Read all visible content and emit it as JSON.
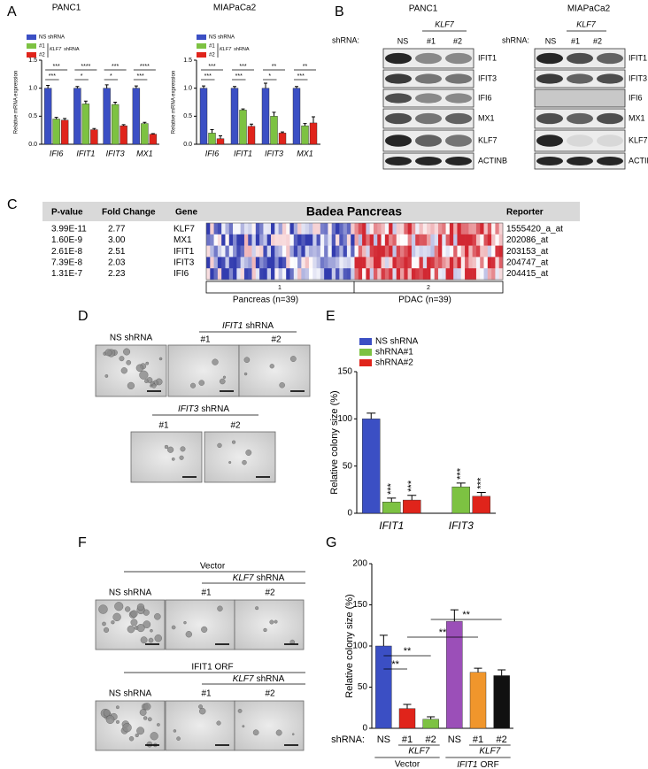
{
  "panel_labels": [
    "A",
    "B",
    "C",
    "D",
    "E",
    "F",
    "G"
  ],
  "chart_data": [
    {
      "type": "bar",
      "title": "PANC1",
      "y_label": "Relative mRNA expression",
      "categories": [
        "IFI6",
        "IFIT1",
        "IFIT3",
        "MX1"
      ],
      "series": [
        {
          "name": "NS shRNA",
          "color": "#3b4fc4",
          "values": [
            1.0,
            1.0,
            1.0,
            1.0
          ],
          "errors": [
            0.05,
            0.03,
            0.06,
            0.04
          ]
        },
        {
          "name": "#1",
          "color": "#7dc242",
          "values": [
            0.45,
            0.72,
            0.71,
            0.37
          ],
          "errors": [
            0.03,
            0.05,
            0.04,
            0.02
          ]
        },
        {
          "name": "#2",
          "color": "#e0241b",
          "values": [
            0.43,
            0.26,
            0.33,
            0.18
          ],
          "errors": [
            0.03,
            0.02,
            0.02,
            0.01
          ]
        }
      ],
      "legend_group_label": {
        "gene": "KLF7",
        "text": "shRNA"
      },
      "significance": [
        [
          "***",
          "***"
        ],
        [
          "****",
          "*"
        ],
        [
          "***",
          "*"
        ],
        [
          "****",
          "***"
        ]
      ],
      "ylim": [
        0,
        1.5
      ],
      "yticks": [
        {
          "value": 0,
          "label": "0.0"
        },
        0.5,
        {
          "value": 1,
          "label": "1.0"
        },
        1.5
      ]
    },
    {
      "type": "bar",
      "title": "MIAPaCa2",
      "y_label": "Relative mRNA expression",
      "categories": [
        "IFI6",
        "IFIT1",
        "IFIT3",
        "MX1"
      ],
      "series": [
        {
          "name": "NS shRNA",
          "color": "#3b4fc4",
          "values": [
            1.0,
            1.0,
            1.0,
            1.0
          ],
          "errors": [
            0.04,
            0.03,
            0.09,
            0.03
          ]
        },
        {
          "name": "#1",
          "color": "#7dc242",
          "values": [
            0.2,
            0.61,
            0.5,
            0.33
          ],
          "errors": [
            0.06,
            0.02,
            0.07,
            0.04
          ]
        },
        {
          "name": "#2",
          "color": "#e0241b",
          "values": [
            0.1,
            0.32,
            0.2,
            0.38
          ],
          "errors": [
            0.05,
            0.04,
            0.02,
            0.11
          ]
        }
      ],
      "legend_group_label": {
        "gene": "KLF7",
        "text": "shRNA"
      },
      "significance": [
        [
          "***",
          "***"
        ],
        [
          "***",
          "***"
        ],
        [
          "**",
          "*"
        ],
        [
          "**",
          "***"
        ]
      ],
      "ylim": [
        0,
        1.5
      ],
      "yticks": [
        {
          "value": 0,
          "label": "0.0"
        },
        0.5,
        {
          "value": 1,
          "label": "1.0"
        },
        1.5
      ]
    },
    {
      "type": "bar",
      "y_label": "Relative colony size (%)",
      "categories": [
        "IFIT1",
        "IFIT3"
      ],
      "series": [
        {
          "name": "NS shRNA",
          "color": "#3b4fc4",
          "values": [
            100,
            null
          ],
          "errors": [
            6,
            null
          ]
        },
        {
          "name": "shRNA#1",
          "color": "#7dc242",
          "values": [
            12,
            28
          ],
          "errors": [
            4,
            4
          ]
        },
        {
          "name": "shRNA#2",
          "color": "#e0241b",
          "values": [
            14,
            18
          ],
          "errors": [
            5,
            4
          ]
        }
      ],
      "annotations": [
        "***",
        "***",
        "***",
        "***"
      ],
      "ylim": [
        0,
        150
      ],
      "yticks": [
        0,
        50,
        100,
        150
      ]
    },
    {
      "type": "bar",
      "y_label": "Relative colony size (%)",
      "row_label": "shRNA:",
      "categories": [
        "NS",
        "#1",
        "#2",
        "NS",
        "#1",
        "#2"
      ],
      "series": [
        {
          "values": [
            100,
            24,
            11,
            130,
            68,
            64
          ],
          "errors": [
            13,
            5,
            3,
            14,
            5,
            7
          ],
          "colors": [
            "#3b4fc4",
            "#e0241b",
            "#7dc242",
            "#9b4fb8",
            "#f0962c",
            "#111111"
          ]
        }
      ],
      "groups": [
        {
          "gene": "KLF7",
          "label": "Vector"
        },
        {
          "gene": "KLF7",
          "label": {
            "gene": "IFIT1",
            "text": "ORF"
          }
        }
      ],
      "annotations": [
        "**",
        "**",
        "**",
        "**"
      ],
      "ylim": [
        0,
        200
      ],
      "yticks": [
        0,
        50,
        100,
        150,
        200
      ]
    }
  ],
  "blots": {
    "shrna_label": "shRNA:",
    "gene": "KLF7",
    "lanes": [
      "NS",
      "#1",
      "#2"
    ],
    "cell_lines": [
      {
        "title": "PANC1",
        "proteins": [
          "IFIT1",
          "IFIT3",
          "IFI6",
          "MX1",
          "KLF7",
          "ACTINB"
        ]
      },
      {
        "title": "MIAPaCa2",
        "proteins": [
          "IFIT1",
          "IFIT3",
          "IFI6",
          "MX1",
          "KLF7",
          "ACTINB"
        ]
      }
    ]
  },
  "table": {
    "columns": [
      "P-value",
      "Fold Change",
      "Gene",
      "Badea Pancreas",
      "Reporter"
    ],
    "rows": [
      [
        "3.99E-11",
        "2.77",
        "KLF7",
        "1555420_a_at"
      ],
      [
        "1.60E-9",
        "3.00",
        "MX1",
        "202086_at"
      ],
      [
        "2.61E-8",
        "2.51",
        "IFIT1",
        "203153_at"
      ],
      [
        "7.39E-8",
        "2.03",
        "IFIT3",
        "204747_at"
      ],
      [
        "1.31E-7",
        "2.23",
        "IFI6",
        "204415_at"
      ]
    ],
    "groups": [
      {
        "id": "1",
        "label": "Pancreas (n=39)"
      },
      {
        "id": "2",
        "label": "PDAC (n=39)"
      }
    ]
  },
  "colony_images": {
    "D": {
      "control": "NS shRNA",
      "groups": [
        {
          "gene": "IFIT1",
          "text": "shRNA",
          "clones": [
            "#1",
            "#2"
          ]
        },
        {
          "gene": "IFIT3",
          "text": "shRNA",
          "clones": [
            "#1",
            "#2"
          ]
        }
      ]
    },
    "F": {
      "rows": [
        {
          "title": "Vector",
          "control": "NS shRNA",
          "gene": "KLF7",
          "text": "shRNA",
          "clones": [
            "#1",
            "#2"
          ]
        },
        {
          "title": "IFIT1 ORF",
          "control": "NS shRNA",
          "gene": "KLF7",
          "text": "shRNA",
          "clones": [
            "#1",
            "#2"
          ]
        }
      ]
    }
  }
}
